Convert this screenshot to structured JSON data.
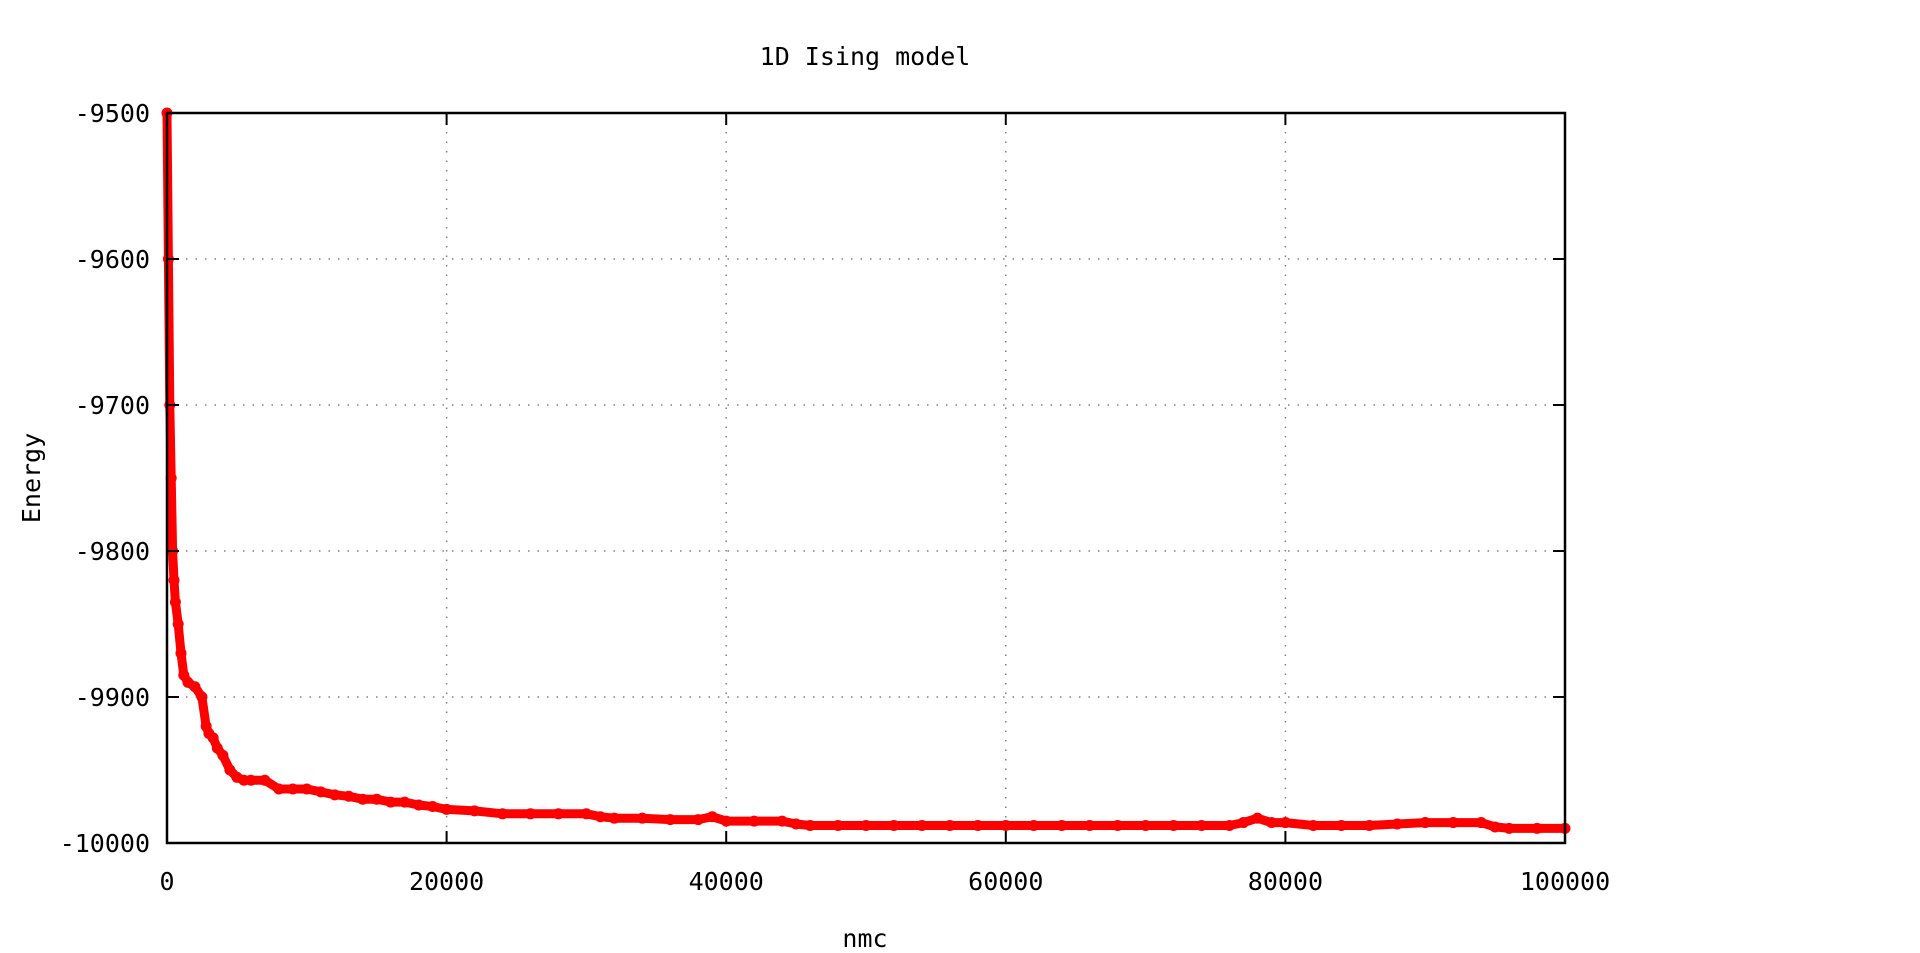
{
  "chart_data": {
    "type": "scatter",
    "title": "1D Ising model",
    "xlabel": "nmc",
    "ylabel": "Energy",
    "xlim": [
      0,
      100000
    ],
    "ylim": [
      -10000,
      -9500
    ],
    "xticks": [
      0,
      20000,
      40000,
      60000,
      80000,
      100000
    ],
    "xtick_labels": [
      "0",
      "20000",
      "40000",
      "60000",
      "80000",
      "100000"
    ],
    "yticks": [
      -10000,
      -9900,
      -9800,
      -9700,
      -9600,
      -9500
    ],
    "ytick_labels": [
      "-10000",
      "-9900",
      "-9800",
      "-9700",
      "-9600",
      "-9500"
    ],
    "grid": true,
    "marker_color": "#ff0000",
    "series": [
      {
        "x": [
          0,
          100,
          200,
          300,
          400,
          500,
          600,
          800,
          1000,
          1200,
          1500,
          2000,
          2500,
          2800,
          3000,
          3300,
          3600,
          4000,
          4500,
          5000,
          5500,
          6000,
          7000,
          8000,
          9000,
          10000,
          11000,
          12000,
          13000,
          14000,
          15000,
          16000,
          17000,
          18000,
          19000,
          20000,
          22000,
          24000,
          26000,
          28000,
          30000,
          31000,
          32000,
          34000,
          36000,
          38000,
          39000,
          40000,
          42000,
          44000,
          45000,
          46000,
          48000,
          50000,
          52000,
          54000,
          56000,
          58000,
          60000,
          62000,
          64000,
          66000,
          68000,
          70000,
          72000,
          74000,
          76000,
          77000,
          78000,
          79000,
          80000,
          82000,
          84000,
          86000,
          88000,
          90000,
          92000,
          94000,
          95000,
          96000,
          98000,
          100000
        ],
        "y": [
          -9500,
          -9600,
          -9700,
          -9750,
          -9800,
          -9820,
          -9835,
          -9850,
          -9870,
          -9885,
          -9890,
          -9893,
          -9900,
          -9920,
          -9925,
          -9928,
          -9935,
          -9940,
          -9950,
          -9955,
          -9957,
          -9957,
          -9957,
          -9963,
          -9963,
          -9963,
          -9965,
          -9967,
          -9968,
          -9970,
          -9970,
          -9972,
          -9972,
          -9974,
          -9975,
          -9977,
          -9978,
          -9980,
          -9980,
          -9980,
          -9980,
          -9982,
          -9983,
          -9983,
          -9984,
          -9984,
          -9982,
          -9985,
          -9985,
          -9985,
          -9987,
          -9988,
          -9988,
          -9988,
          -9988,
          -9988,
          -9988,
          -9988,
          -9988,
          -9988,
          -9988,
          -9988,
          -9988,
          -9988,
          -9988,
          -9988,
          -9988,
          -9986,
          -9983,
          -9986,
          -9986,
          -9988,
          -9988,
          -9988,
          -9987,
          -9986,
          -9986,
          -9986,
          -9989,
          -9990,
          -9990,
          -9990
        ]
      }
    ]
  }
}
